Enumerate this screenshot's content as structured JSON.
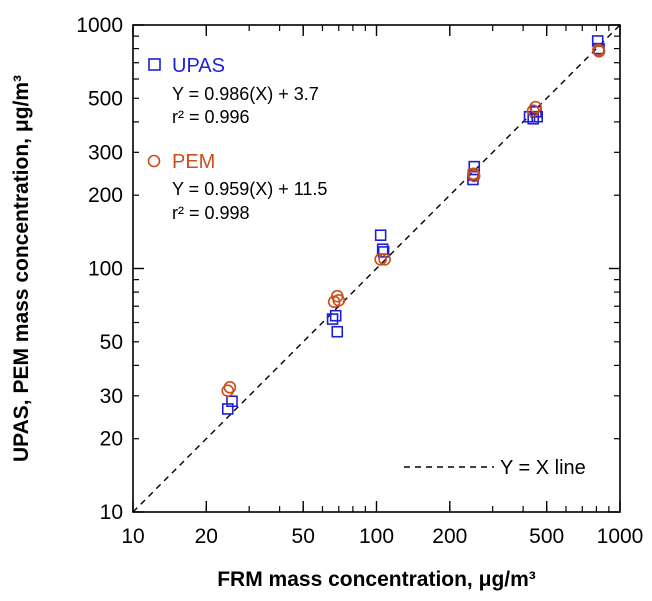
{
  "chart_data": {
    "type": "scatter",
    "xscale": "log",
    "yscale": "log",
    "xlim": [
      10,
      1000
    ],
    "ylim": [
      10,
      1000
    ],
    "xlabel": "FRM mass concentration, μg/m³",
    "ylabel": "UPAS, PEM mass concentration, μg/m³",
    "x_ticks": [
      10,
      20,
      50,
      100,
      200,
      500,
      1000
    ],
    "y_ticks": [
      10,
      20,
      30,
      50,
      100,
      200,
      300,
      500,
      1000
    ],
    "x_tick_labels": [
      "10",
      "20",
      "50",
      "100",
      "200",
      "500",
      "1000"
    ],
    "y_tick_labels": [
      "10",
      "20",
      "30",
      "50",
      "100",
      "200",
      "300",
      "500",
      "1000"
    ],
    "grid": false,
    "reference_line": {
      "label": "Y = X line",
      "slope": 1,
      "intercept": 0
    },
    "series": [
      {
        "name": "UPAS",
        "marker": "square",
        "color": "#1f1fd6",
        "equation": "Y = 0.986(X) + 3.7",
        "r2": "r² = 0.996",
        "points": [
          {
            "x": 24.5,
            "y": 26.5
          },
          {
            "x": 25.5,
            "y": 28.5
          },
          {
            "x": 66,
            "y": 62
          },
          {
            "x": 68,
            "y": 64
          },
          {
            "x": 69,
            "y": 55
          },
          {
            "x": 104,
            "y": 137
          },
          {
            "x": 106,
            "y": 120
          },
          {
            "x": 107,
            "y": 117
          },
          {
            "x": 249,
            "y": 232
          },
          {
            "x": 250,
            "y": 242
          },
          {
            "x": 252,
            "y": 262
          },
          {
            "x": 425,
            "y": 420
          },
          {
            "x": 440,
            "y": 412
          },
          {
            "x": 452,
            "y": 440
          },
          {
            "x": 457,
            "y": 420
          },
          {
            "x": 810,
            "y": 860
          },
          {
            "x": 820,
            "y": 800
          }
        ]
      },
      {
        "name": "PEM",
        "marker": "circle",
        "color": "#c84e1c",
        "equation": "Y = 0.959(X) + 11.5",
        "r2": "r² = 0.998",
        "points": [
          {
            "x": 24.5,
            "y": 31.5
          },
          {
            "x": 25,
            "y": 32.5
          },
          {
            "x": 67,
            "y": 73
          },
          {
            "x": 69,
            "y": 77
          },
          {
            "x": 70,
            "y": 74
          },
          {
            "x": 104,
            "y": 109
          },
          {
            "x": 108,
            "y": 109
          },
          {
            "x": 250,
            "y": 245
          },
          {
            "x": 252,
            "y": 240
          },
          {
            "x": 440,
            "y": 445
          },
          {
            "x": 450,
            "y": 460
          },
          {
            "x": 815,
            "y": 790
          },
          {
            "x": 820,
            "y": 780
          }
        ]
      }
    ]
  }
}
